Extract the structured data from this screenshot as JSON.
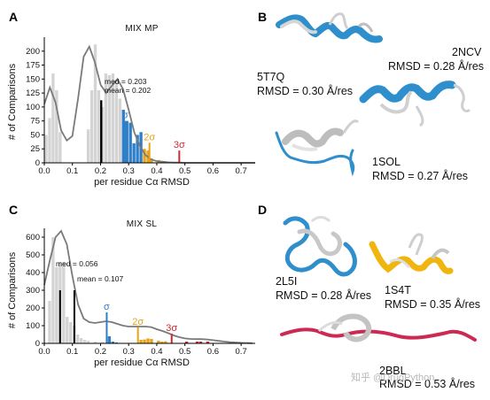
{
  "panels": {
    "a": "A",
    "b": "B",
    "c": "C",
    "d": "D"
  },
  "colors": {
    "gray_bar": "#d4d4d4",
    "blue": "#2f7ec8",
    "orange": "#e8a317",
    "red": "#cc2a36",
    "kde": "#7a7a7a",
    "black": "#000000"
  },
  "chart_data": [
    {
      "id": "mix_mp",
      "type": "bar",
      "title": "MIX MP",
      "xlabel": "per residue Cα RMSD",
      "ylabel": "# of Comparisons",
      "xlim": [
        0.0,
        0.75
      ],
      "ylim": [
        0,
        225
      ],
      "xticks": [
        "0.0",
        "0.1",
        "0.2",
        "0.3",
        "0.4",
        "0.5",
        "0.6",
        "0.7"
      ],
      "yticks": [
        "0",
        "25",
        "50",
        "75",
        "100",
        "125",
        "150",
        "175",
        "200"
      ],
      "bin_width": 0.0125,
      "bins": [
        {
          "x": 0.0,
          "v": 50,
          "c": "gray"
        },
        {
          "x": 0.0125,
          "v": 80,
          "c": "gray"
        },
        {
          "x": 0.025,
          "v": 160,
          "c": "gray"
        },
        {
          "x": 0.0375,
          "v": 130,
          "c": "gray"
        },
        {
          "x": 0.05,
          "v": 55,
          "c": "gray"
        },
        {
          "x": 0.15,
          "v": 60,
          "c": "gray"
        },
        {
          "x": 0.1625,
          "v": 130,
          "c": "gray"
        },
        {
          "x": 0.175,
          "v": 212,
          "c": "gray"
        },
        {
          "x": 0.1875,
          "v": 130,
          "c": "gray"
        },
        {
          "x": 0.2,
          "v": 100,
          "c": "gray"
        },
        {
          "x": 0.2125,
          "v": 160,
          "c": "gray"
        },
        {
          "x": 0.225,
          "v": 157,
          "c": "gray"
        },
        {
          "x": 0.2375,
          "v": 160,
          "c": "gray"
        },
        {
          "x": 0.25,
          "v": 148,
          "c": "gray"
        },
        {
          "x": 0.2625,
          "v": 115,
          "c": "gray"
        },
        {
          "x": 0.275,
          "v": 95,
          "c": "blue"
        },
        {
          "x": 0.2875,
          "v": 75,
          "c": "blue"
        },
        {
          "x": 0.3,
          "v": 72,
          "c": "blue"
        },
        {
          "x": 0.3125,
          "v": 35,
          "c": "blue"
        },
        {
          "x": 0.325,
          "v": 50,
          "c": "blue"
        },
        {
          "x": 0.3375,
          "v": 55,
          "c": "blue"
        },
        {
          "x": 0.35,
          "v": 25,
          "c": "orange"
        },
        {
          "x": 0.3625,
          "v": 22,
          "c": "orange"
        },
        {
          "x": 0.375,
          "v": 8,
          "c": "orange"
        },
        {
          "x": 0.4,
          "v": 5,
          "c": "orange"
        }
      ],
      "kde_x": [
        0.0,
        0.02,
        0.04,
        0.06,
        0.08,
        0.1,
        0.12,
        0.14,
        0.16,
        0.18,
        0.2,
        0.22,
        0.24,
        0.26,
        0.28,
        0.3,
        0.32,
        0.34,
        0.36,
        0.38,
        0.4,
        0.42,
        0.44,
        0.46,
        0.48,
        0.5,
        0.55,
        0.6,
        0.65,
        0.7,
        0.75
      ],
      "kde_y": [
        105,
        135,
        108,
        58,
        40,
        48,
        115,
        190,
        208,
        180,
        140,
        125,
        138,
        150,
        132,
        95,
        55,
        30,
        14,
        6,
        3,
        2,
        1,
        0.5,
        0.5,
        0,
        0,
        0,
        0,
        0,
        0
      ],
      "median_line": {
        "x": 0.203,
        "v": 112
      },
      "mean_line": {
        "x": 0.202,
        "v": 112
      },
      "annotations": [
        "med = 0.203",
        "mean = 0.202"
      ],
      "sigma_lines": [
        {
          "label": "σ",
          "x": 0.288,
          "v": 75,
          "c": "blue"
        },
        {
          "label": "2σ",
          "x": 0.374,
          "v": 36,
          "c": "orange"
        },
        {
          "label": "3σ",
          "x": 0.48,
          "v": 22,
          "c": "red"
        }
      ]
    },
    {
      "id": "mix_sl",
      "type": "bar",
      "title": "MIX SL",
      "xlabel": "per residue Cα RMSD",
      "ylabel": "# of Comparisons",
      "xlim": [
        0.0,
        0.75
      ],
      "ylim": [
        0,
        650
      ],
      "xticks": [
        "0.0",
        "0.1",
        "0.2",
        "0.3",
        "0.4",
        "0.5",
        "0.6",
        "0.7"
      ],
      "yticks": [
        "0",
        "100",
        "200",
        "300",
        "400",
        "500",
        "600"
      ],
      "bin_width": 0.0125,
      "bins": [
        {
          "x": 0.0125,
          "v": 240,
          "c": "gray"
        },
        {
          "x": 0.025,
          "v": 600,
          "c": "gray"
        },
        {
          "x": 0.0375,
          "v": 430,
          "c": "gray"
        },
        {
          "x": 0.05,
          "v": 460,
          "c": "gray"
        },
        {
          "x": 0.0625,
          "v": 460,
          "c": "gray"
        },
        {
          "x": 0.075,
          "v": 150,
          "c": "gray"
        },
        {
          "x": 0.0875,
          "v": 120,
          "c": "gray"
        },
        {
          "x": 0.1,
          "v": 100,
          "c": "gray"
        },
        {
          "x": 0.1125,
          "v": 50,
          "c": "gray"
        },
        {
          "x": 0.125,
          "v": 30,
          "c": "gray"
        },
        {
          "x": 0.1375,
          "v": 20,
          "c": "gray"
        },
        {
          "x": 0.15,
          "v": 15,
          "c": "gray"
        },
        {
          "x": 0.175,
          "v": 10,
          "c": "gray"
        },
        {
          "x": 0.2,
          "v": 8,
          "c": "gray"
        },
        {
          "x": 0.225,
          "v": 40,
          "c": "blue"
        },
        {
          "x": 0.2375,
          "v": 10,
          "c": "blue"
        },
        {
          "x": 0.25,
          "v": 5,
          "c": "blue"
        },
        {
          "x": 0.3375,
          "v": 20,
          "c": "orange"
        },
        {
          "x": 0.35,
          "v": 22,
          "c": "orange"
        },
        {
          "x": 0.3625,
          "v": 28,
          "c": "orange"
        },
        {
          "x": 0.375,
          "v": 25,
          "c": "orange"
        },
        {
          "x": 0.4,
          "v": 15,
          "c": "orange"
        },
        {
          "x": 0.4125,
          "v": 10,
          "c": "orange"
        },
        {
          "x": 0.425,
          "v": 12,
          "c": "orange"
        },
        {
          "x": 0.5,
          "v": 10,
          "c": "red"
        },
        {
          "x": 0.5375,
          "v": 10,
          "c": "red"
        },
        {
          "x": 0.55,
          "v": 10,
          "c": "red"
        },
        {
          "x": 0.575,
          "v": 10,
          "c": "red"
        }
      ],
      "kde_x": [
        0.0,
        0.02,
        0.04,
        0.06,
        0.08,
        0.1,
        0.12,
        0.14,
        0.16,
        0.18,
        0.2,
        0.22,
        0.24,
        0.26,
        0.28,
        0.3,
        0.32,
        0.34,
        0.36,
        0.38,
        0.4,
        0.42,
        0.44,
        0.46,
        0.48,
        0.5,
        0.52,
        0.54,
        0.56,
        0.58,
        0.6,
        0.62,
        0.64,
        0.66,
        0.68,
        0.7,
        0.72,
        0.74
      ],
      "kde_y": [
        330,
        470,
        600,
        635,
        560,
        380,
        220,
        140,
        120,
        115,
        120,
        125,
        120,
        110,
        100,
        95,
        95,
        95,
        95,
        92,
        80,
        70,
        58,
        45,
        35,
        28,
        25,
        24,
        24,
        22,
        18,
        14,
        10,
        7,
        5,
        3,
        2,
        1
      ],
      "median_line": {
        "x": 0.056,
        "v": 300
      },
      "mean_line": {
        "x": 0.107,
        "v": 300
      },
      "annotations": [
        "med = 0.056",
        "mean = 0.107"
      ],
      "sigma_lines": [
        {
          "label": "σ",
          "x": 0.222,
          "v": 175,
          "c": "blue"
        },
        {
          "label": "2σ",
          "x": 0.333,
          "v": 90,
          "c": "orange"
        },
        {
          "label": "3σ",
          "x": 0.453,
          "v": 55,
          "c": "red"
        }
      ]
    }
  ],
  "structures": {
    "b1_code": "5T7Q",
    "b1_rmsd": "RMSD = 0.30 Å/res",
    "b2_code": "2NCV",
    "b2_rmsd": "RMSD = 0.28 Å/res",
    "b3_code": "1SOL",
    "b3_rmsd": "RMSD = 0.27 Å/res",
    "d1_code": "2L5I",
    "d1_rmsd": "RMSD = 0.28 Å/res",
    "d2_code": "1S4T",
    "d2_rmsd": "RMSD = 0.35 Å/res",
    "d3_code": "2BBL",
    "d3_rmsd": "RMSD = 0.53 Å/res"
  },
  "watermark": "知乎 @DrugPython"
}
